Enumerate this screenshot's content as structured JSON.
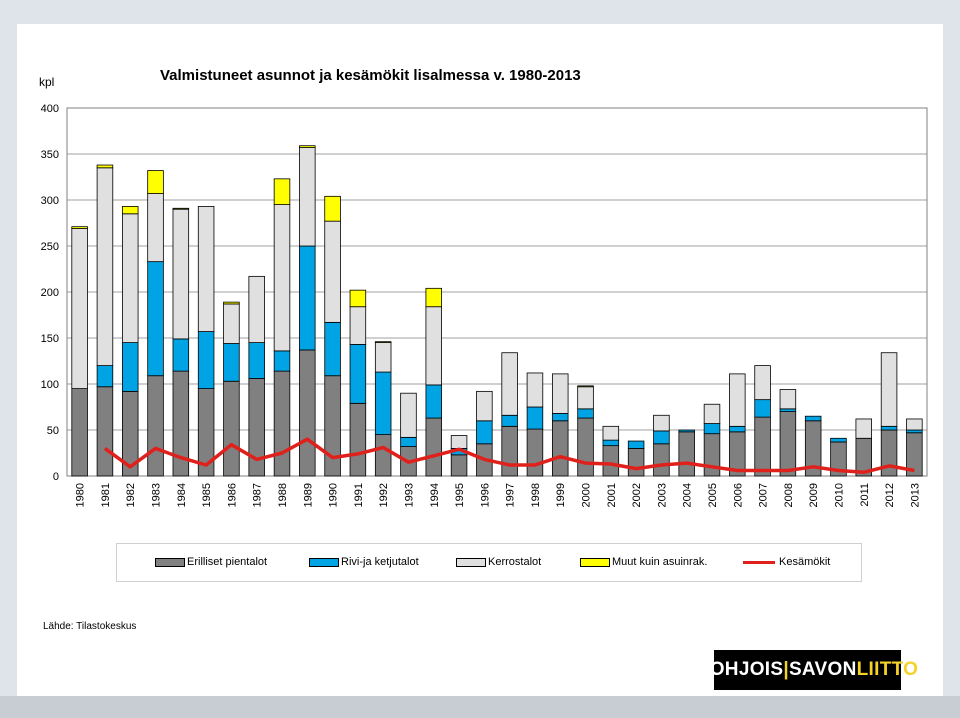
{
  "chart_data": {
    "type": "bar",
    "stacked": true,
    "title": "Valmistuneet asunnot  ja  kesämökit lisalmessa v. 1980-2013",
    "ylabel": "kpl",
    "xlabel": "",
    "ylim": [
      0,
      400
    ],
    "yticks": [
      0,
      50,
      100,
      150,
      200,
      250,
      300,
      350,
      400
    ],
    "grid": true,
    "legend_position": "bottom",
    "categories": [
      "1980",
      "1981",
      "1982",
      "1983",
      "1984",
      "1985",
      "1986",
      "1987",
      "1988",
      "1989",
      "1990",
      "1991",
      "1992",
      "1993",
      "1994",
      "1995",
      "1996",
      "1997",
      "1998",
      "1999",
      "2000",
      "2001",
      "2002",
      "2003",
      "2004",
      "2005",
      "2006",
      "2007",
      "2008",
      "2009",
      "2010",
      "2011",
      "2012",
      "2013"
    ],
    "series": [
      {
        "name": "Erilliset pientalot",
        "type": "bar",
        "color": "#808080",
        "values": [
          95,
          97,
          92,
          109,
          114,
          95,
          103,
          106,
          114,
          137,
          109,
          79,
          45,
          32,
          63,
          23,
          35,
          54,
          51,
          60,
          63,
          33,
          30,
          35,
          48,
          46,
          48,
          64,
          70,
          60,
          37,
          41,
          50,
          47
        ]
      },
      {
        "name": "Rivi-ja ketjutalot",
        "type": "bar",
        "color": "#00a4e4",
        "values": [
          0,
          23,
          53,
          124,
          35,
          62,
          41,
          39,
          22,
          113,
          58,
          64,
          68,
          10,
          36,
          7,
          25,
          12,
          24,
          8,
          10,
          6,
          8,
          14,
          2,
          11,
          6,
          19,
          3,
          5,
          4,
          0,
          4,
          3
        ]
      },
      {
        "name": "Kerrostalot",
        "type": "bar",
        "color": "#e0e0e0",
        "values": [
          174,
          215,
          140,
          74,
          141,
          136,
          43,
          72,
          159,
          107,
          110,
          41,
          32,
          48,
          85,
          14,
          32,
          68,
          37,
          43,
          24,
          15,
          0,
          17,
          0,
          21,
          57,
          37,
          21,
          0,
          0,
          21,
          80,
          12
        ]
      },
      {
        "name": "Muut kuin asuinrak.",
        "type": "bar",
        "color": "#ffff00",
        "values": [
          2,
          3,
          8,
          25,
          1,
          0,
          2,
          0,
          28,
          2,
          27,
          18,
          1,
          0,
          20,
          0,
          0,
          0,
          0,
          0,
          1,
          0,
          0,
          0,
          0,
          0,
          0,
          0,
          0,
          0,
          0,
          0,
          0,
          0
        ]
      },
      {
        "name": "Kesämökit",
        "type": "line",
        "color": "#e0201b",
        "values": [
          null,
          30,
          10,
          30,
          20,
          12,
          34,
          18,
          25,
          40,
          20,
          24,
          31,
          15,
          22,
          29,
          18,
          12,
          12,
          21,
          14,
          13,
          8,
          12,
          14,
          10,
          6,
          6,
          6,
          10,
          6,
          4,
          11,
          6
        ]
      }
    ]
  },
  "source": "Lähde: Tilastokeskus",
  "logo": {
    "part1": "POHJOIS",
    "sep": "|",
    "part2": "SAVON",
    "part3": "LIITTO"
  }
}
